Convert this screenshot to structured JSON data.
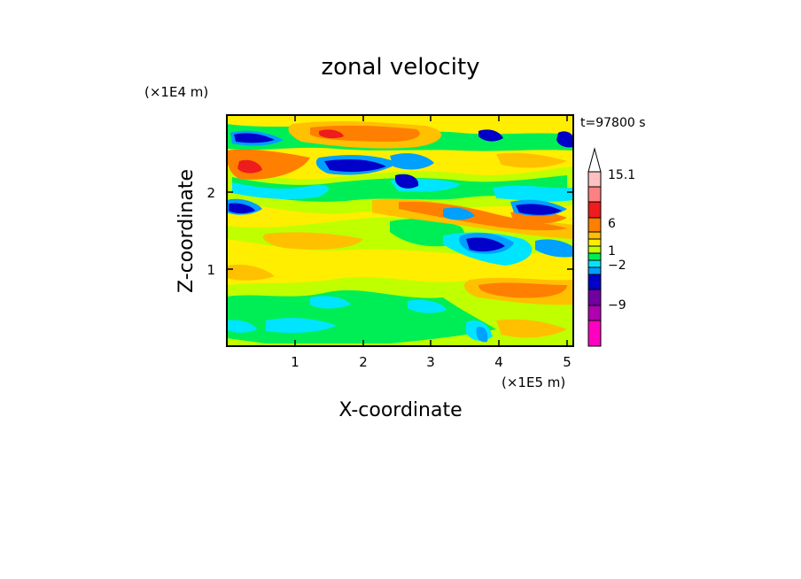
{
  "chart_data": {
    "type": "heatmap",
    "title": "zonal velocity",
    "xlabel": "X-coordinate",
    "ylabel": "Z-coordinate",
    "x_unit": "(×1E5 m)",
    "y_unit": "(×1E4 m)",
    "time_label": "t=97800 s",
    "xlim": [
      0,
      5.12
    ],
    "ylim": [
      0,
      2.98
    ],
    "x_ticks": [
      "1",
      "2",
      "3",
      "4",
      "5"
    ],
    "y_ticks": [
      "1",
      "2"
    ],
    "colorbar": {
      "labels": [
        "15.1",
        "6",
        "1",
        "−2",
        "−9"
      ],
      "colors": [
        "#ffffff",
        "#ffc0c0",
        "#ff8080",
        "#ee1c1c",
        "#ff7f00",
        "#ffc000",
        "#ffee00",
        "#bfff00",
        "#00ee55",
        "#00e5ff",
        "#00a0ff",
        "#0000c8",
        "#7000a0",
        "#b000b0",
        "#ff00c0"
      ],
      "extend_max": true
    },
    "grid": false
  }
}
